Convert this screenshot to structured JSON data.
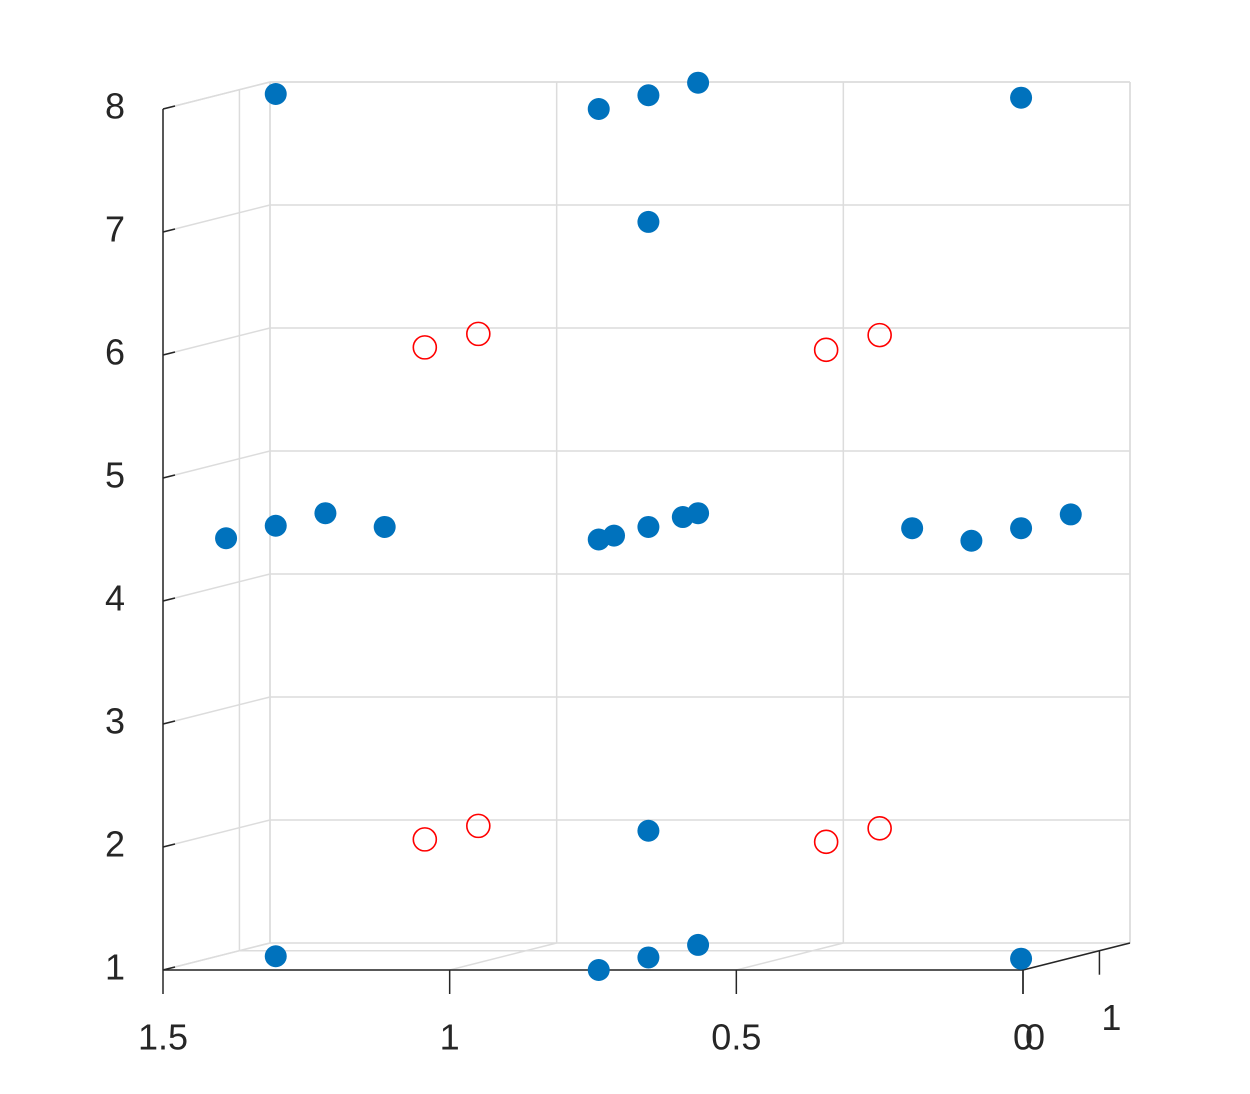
{
  "chart_data": {
    "type": "scatter3d",
    "xlim": [
      1.5,
      0
    ],
    "ylim": [
      0,
      1.4
    ],
    "zlim": [
      1,
      8
    ],
    "xticks": [
      0,
      0.5,
      1,
      1.5
    ],
    "yticks": [
      0,
      1
    ],
    "zticks": [
      1,
      2,
      3,
      4,
      5,
      6,
      7,
      8
    ],
    "grid": true,
    "series": [
      {
        "marker": "filled",
        "color": "#0072bd",
        "x": [
          1.39,
          0.74,
          0.74,
          0.74,
          0.09,
          0.74,
          0.74,
          0.74,
          0.74,
          0.74,
          0.74,
          1.39,
          1.39,
          1.39,
          1.2,
          0.28,
          0.09,
          0.09,
          0.09,
          0.74,
          1.39,
          0.74,
          0.74,
          0.74,
          0.09
        ],
        "y": [
          0.65,
          0,
          0.65,
          1.3,
          0.65,
          0.65,
          0,
          0.2,
          0.65,
          1.1,
          1.3,
          0,
          0.65,
          1.3,
          0.65,
          0.65,
          0,
          0.65,
          1.3,
          0.65,
          0.65,
          0,
          0.65,
          1.3,
          0.65
        ],
        "z": [
          8.02,
          8.0,
          8.01,
          8.01,
          7.99,
          6.98,
          4.5,
          4.5,
          4.5,
          4.51,
          4.51,
          4.51,
          4.51,
          4.51,
          4.5,
          4.49,
          4.49,
          4.49,
          4.5,
          2.03,
          1.01,
          1.0,
          1.0,
          1.0,
          0.99
        ]
      },
      {
        "marker": "open",
        "color": "#ff0000",
        "x": [
          1.13,
          1.13,
          0.43,
          0.43,
          1.13,
          1.13,
          0.43,
          0.43
        ],
        "y": [
          0.65,
          1.35,
          0.65,
          1.35,
          0.65,
          1.35,
          0.65,
          1.35
        ],
        "z": [
          5.96,
          5.96,
          5.94,
          5.95,
          1.96,
          1.96,
          1.94,
          1.94
        ]
      }
    ]
  }
}
